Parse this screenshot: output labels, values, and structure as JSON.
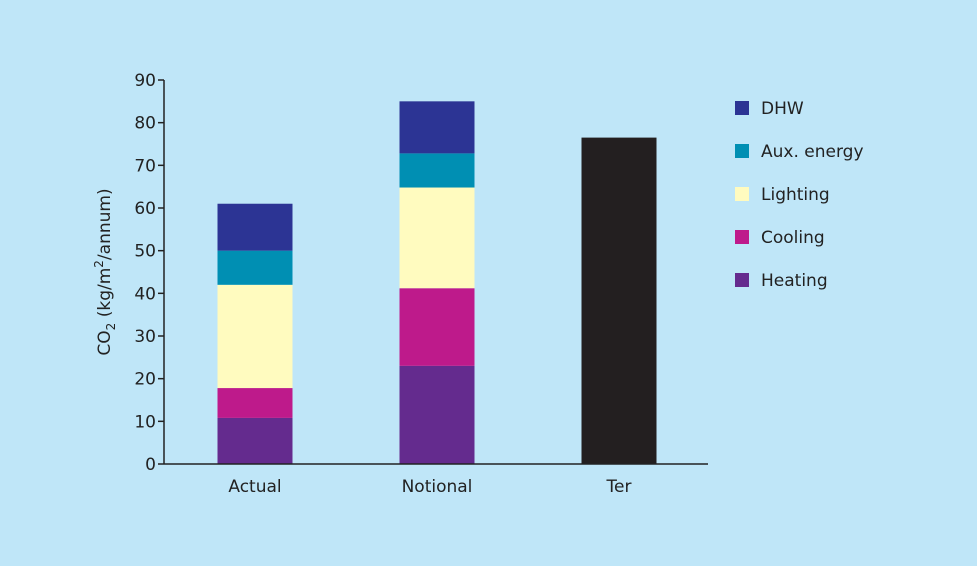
{
  "chart_data": {
    "type": "bar",
    "stacked": true,
    "categories": [
      "Actual",
      "Notional",
      "Ter"
    ],
    "series": [
      {
        "name": "Heating",
        "color": "#642b8e",
        "values": [
          10.8,
          23.0,
          null
        ]
      },
      {
        "name": "Cooling",
        "color": "#be1a8b",
        "values": [
          7.0,
          18.2,
          null
        ]
      },
      {
        "name": "Lighting",
        "color": "#fffbbf",
        "values": [
          24.2,
          23.6,
          null
        ]
      },
      {
        "name": "Aux. energy",
        "color": "#008fb3",
        "values": [
          8.0,
          8.0,
          null
        ]
      },
      {
        "name": "DHW",
        "color": "#2c3494",
        "values": [
          11.0,
          12.2,
          null
        ]
      }
    ],
    "total_bars": [
      {
        "category": "Ter",
        "value": 76.5,
        "color": "#231f20"
      }
    ],
    "title": "",
    "ylabel": "CO₂ (kg/m²/annum)",
    "ylabel_parts": {
      "main": "CO",
      "sub": "2",
      "mid": " (kg/m",
      "sup": "2",
      "end": "/annum)"
    },
    "ylim": [
      0,
      90
    ],
    "yticks": [
      0,
      10,
      20,
      30,
      40,
      50,
      60,
      70,
      80,
      90
    ],
    "legend": {
      "placement": "right",
      "order": [
        "DHW",
        "Aux. energy",
        "Lighting",
        "Cooling",
        "Heating"
      ]
    },
    "grid": false
  }
}
